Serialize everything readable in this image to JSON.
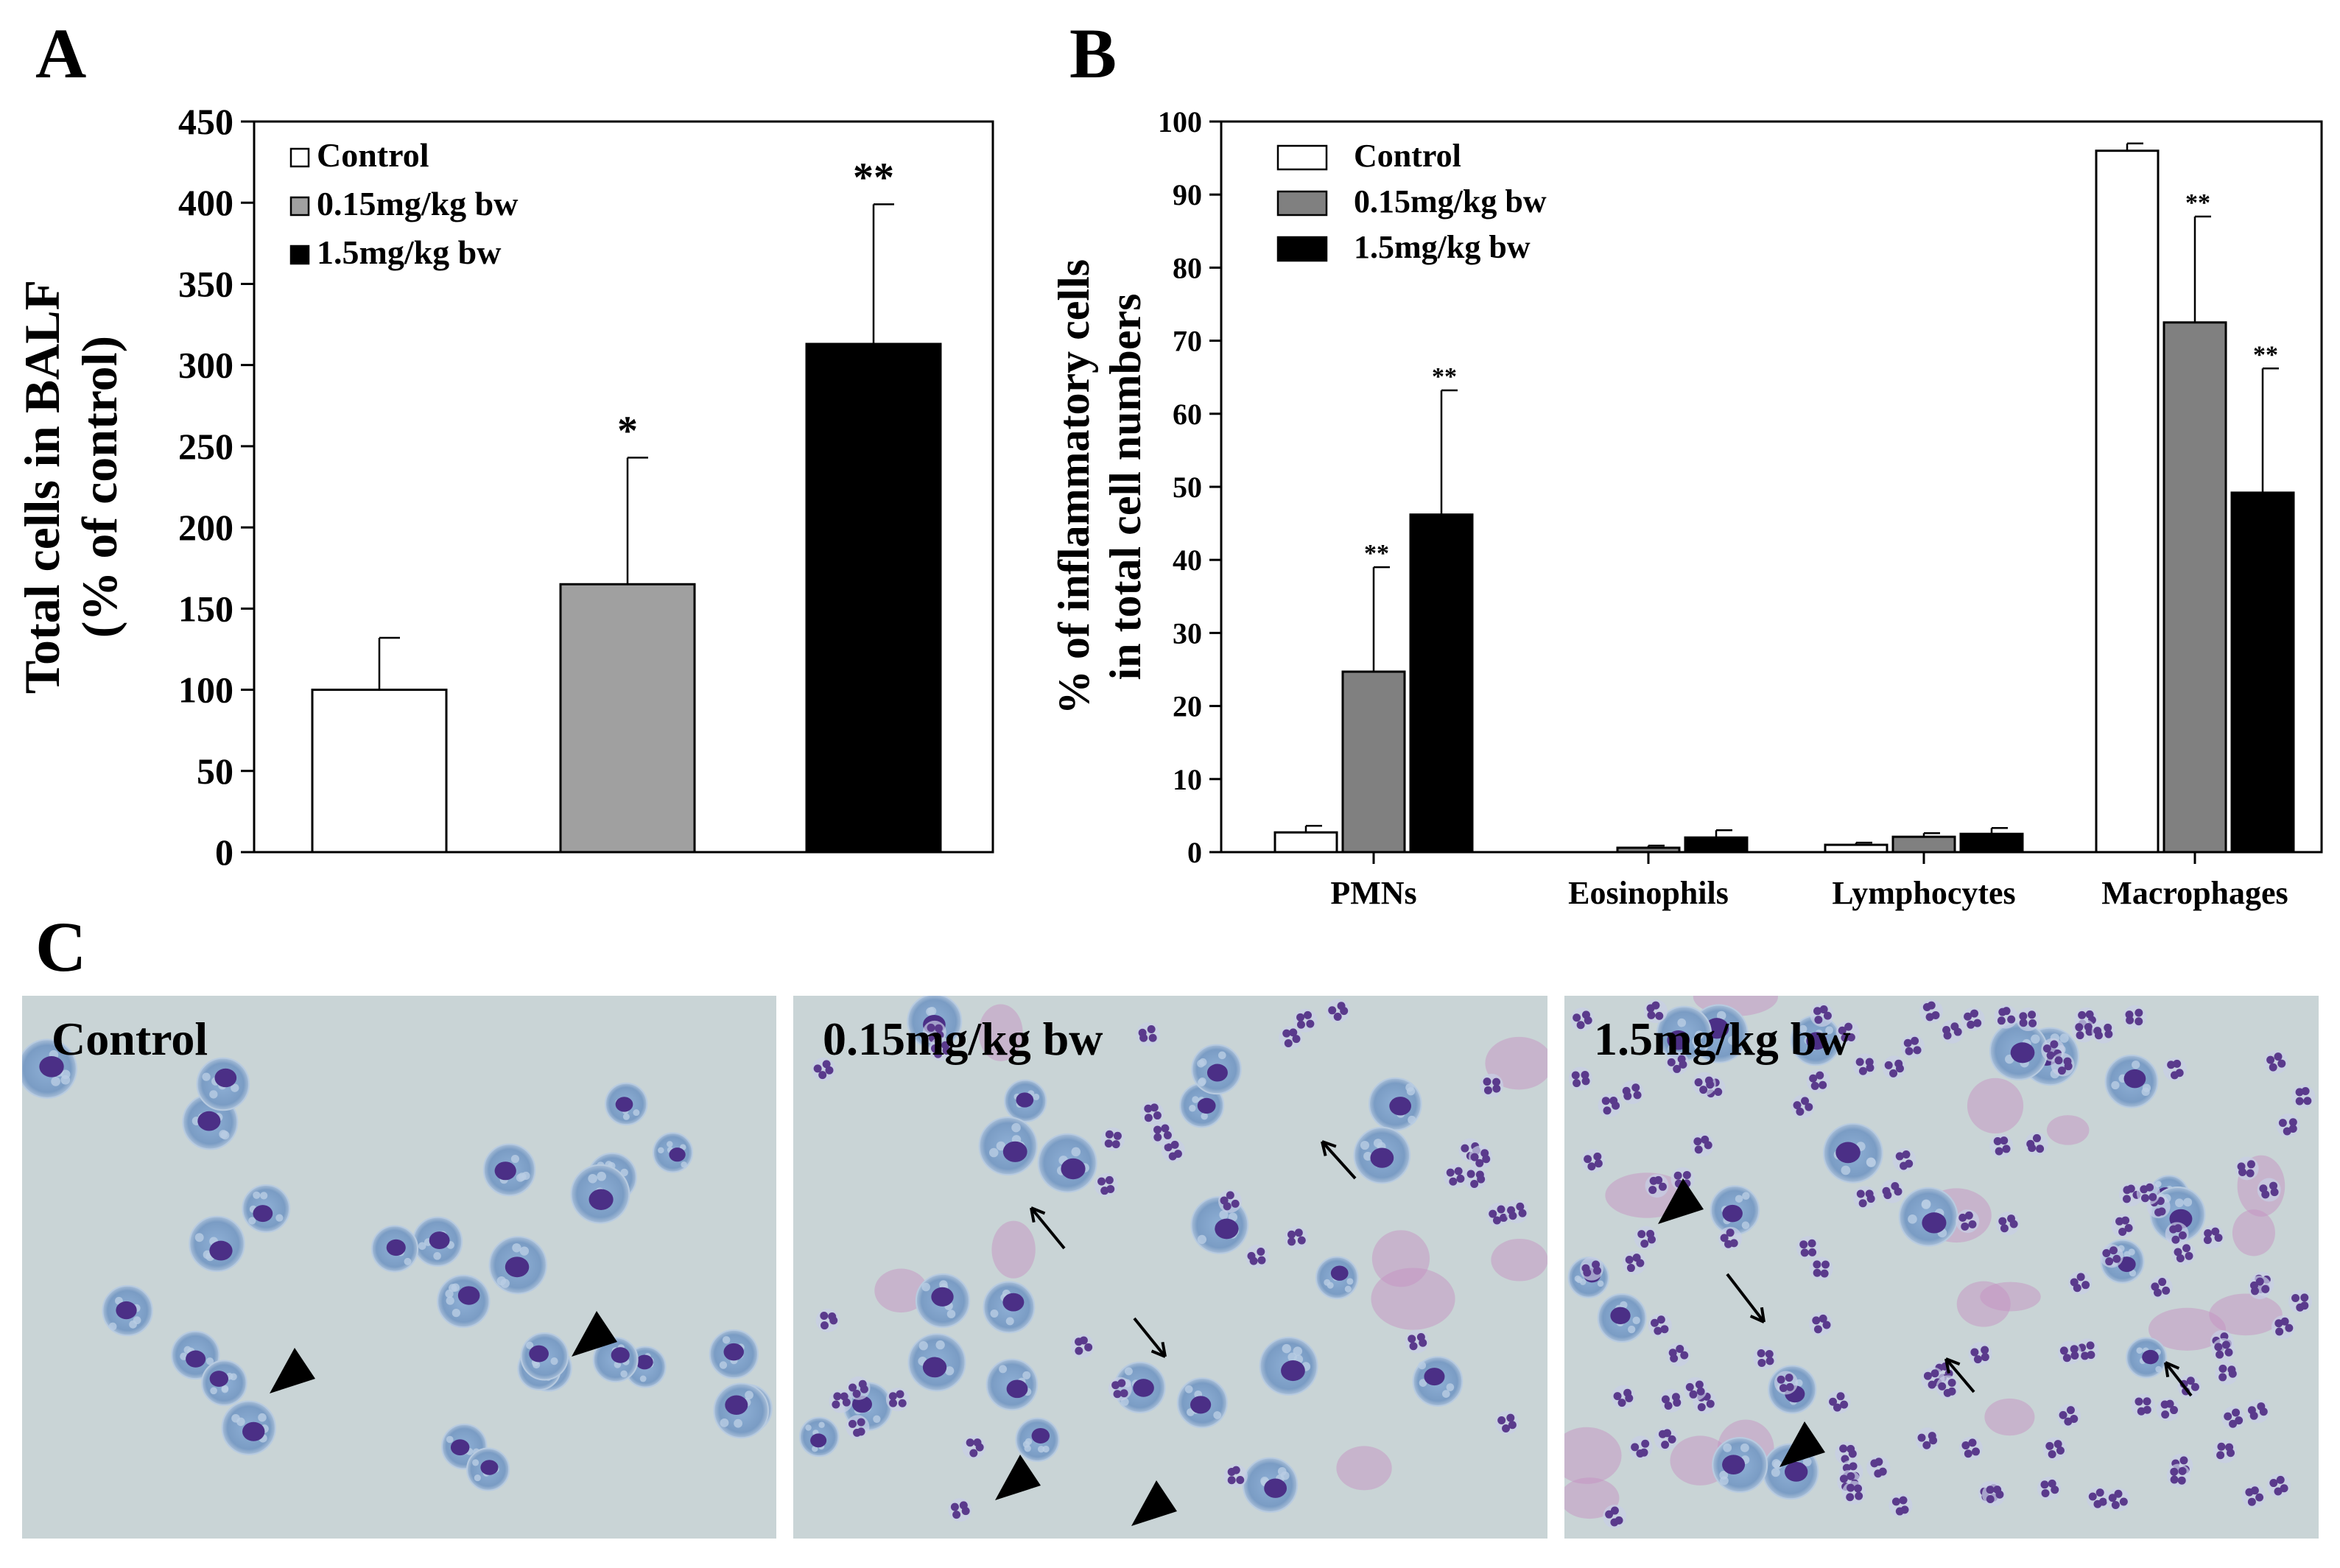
{
  "panel_letters": {
    "a": "A",
    "b": "B",
    "c": "C"
  },
  "colors": {
    "Control": "#ffffff",
    "0.15mg/kg bw": "#a0a0a0",
    "1.5mg/kg bw": "#000000",
    "panelB_mid": "#808080",
    "micro_bg": "#c9d4d6",
    "macrophage": "#7d9fc6",
    "nucleus": "#4b2f86",
    "pmn": "#5a3a8c",
    "debris": "#c58fc0"
  },
  "chart_data": [
    {
      "type": "bar",
      "panel": "A",
      "ylabel": "Total cells in BALF",
      "ylabel2": "(% of control)",
      "ylim": [
        0,
        450
      ],
      "yticks": [
        0,
        50,
        100,
        150,
        200,
        250,
        300,
        350,
        400,
        450
      ],
      "legend": [
        "Control",
        "0.15mg/kg bw",
        "1.5mg/kg bw"
      ],
      "legend_position": "top-left",
      "categories": [
        "Control",
        "0.15mg/kg bw",
        "1.5mg/kg bw"
      ],
      "values": [
        100,
        165,
        313
      ],
      "errors": [
        32,
        78,
        86
      ],
      "significance": [
        "",
        "*",
        "**"
      ]
    },
    {
      "type": "bar",
      "panel": "B",
      "ylabel": "% of inflammatory cells",
      "ylabel2": "in total cell numbers",
      "ylim": [
        0,
        100
      ],
      "yticks": [
        0,
        10,
        20,
        30,
        40,
        50,
        60,
        70,
        80,
        90,
        100
      ],
      "legend_position": "top-left",
      "categories": [
        "PMNs",
        "Eosinophils",
        "Lymphocytes",
        "Macrophages"
      ],
      "series": [
        {
          "name": "Control",
          "values": [
            2.7,
            0,
            1.0,
            96.0
          ],
          "errors": [
            0.9,
            0,
            0.3,
            1.0
          ],
          "significance": [
            "",
            "",
            "",
            ""
          ]
        },
        {
          "name": "0.15mg/kg bw",
          "values": [
            24.7,
            0.6,
            2.1,
            72.5
          ],
          "errors": [
            14.3,
            0.3,
            0.5,
            14.5
          ],
          "significance": [
            "**",
            "",
            "",
            "**"
          ]
        },
        {
          "name": "1.5mg/kg bw",
          "values": [
            46.2,
            2.0,
            2.5,
            49.2
          ],
          "errors": [
            17.0,
            1.0,
            0.8,
            17.0
          ],
          "significance": [
            "**",
            "",
            "",
            "**"
          ]
        }
      ]
    }
  ],
  "micrographs": [
    {
      "label": "Control",
      "pmn_count": 0,
      "macro_count": 28,
      "arrowheads": 2,
      "arrows": 0
    },
    {
      "label": "0.15mg/kg bw",
      "pmn_count": 34,
      "macro_count": 22,
      "arrowheads": 2,
      "arrows": 3
    },
    {
      "label": "1.5mg/kg bw",
      "pmn_count": 110,
      "macro_count": 18,
      "arrowheads": 2,
      "arrows": 3
    }
  ]
}
